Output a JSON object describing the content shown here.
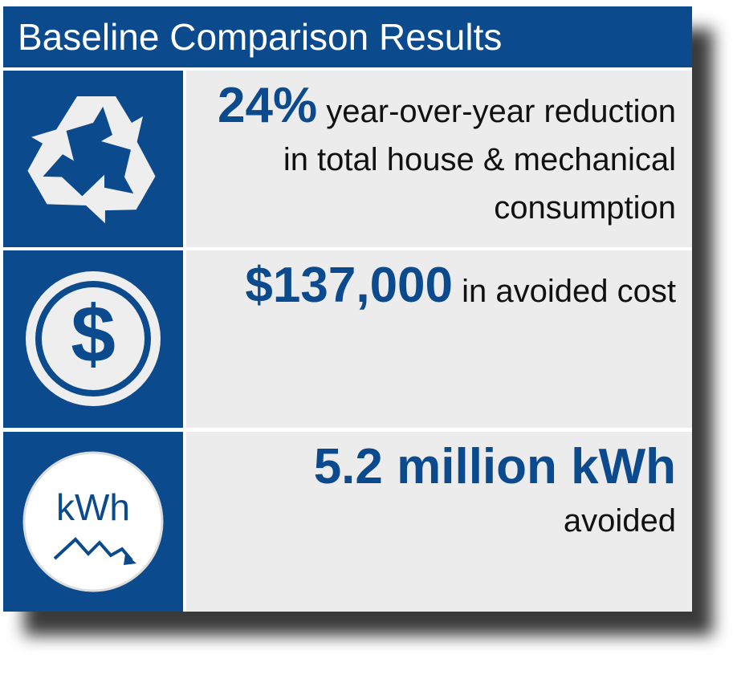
{
  "header": {
    "title": "Baseline Comparison Results"
  },
  "rows": [
    {
      "highlight": "24%",
      "text": "year-over-year reduction in total house & mechanical consumption"
    },
    {
      "highlight": "$137,000",
      "text": "in avoided cost",
      "icon_label": "$"
    },
    {
      "highlight": "5.2 million kWh",
      "text": "avoided",
      "icon_label": "kWh"
    }
  ]
}
